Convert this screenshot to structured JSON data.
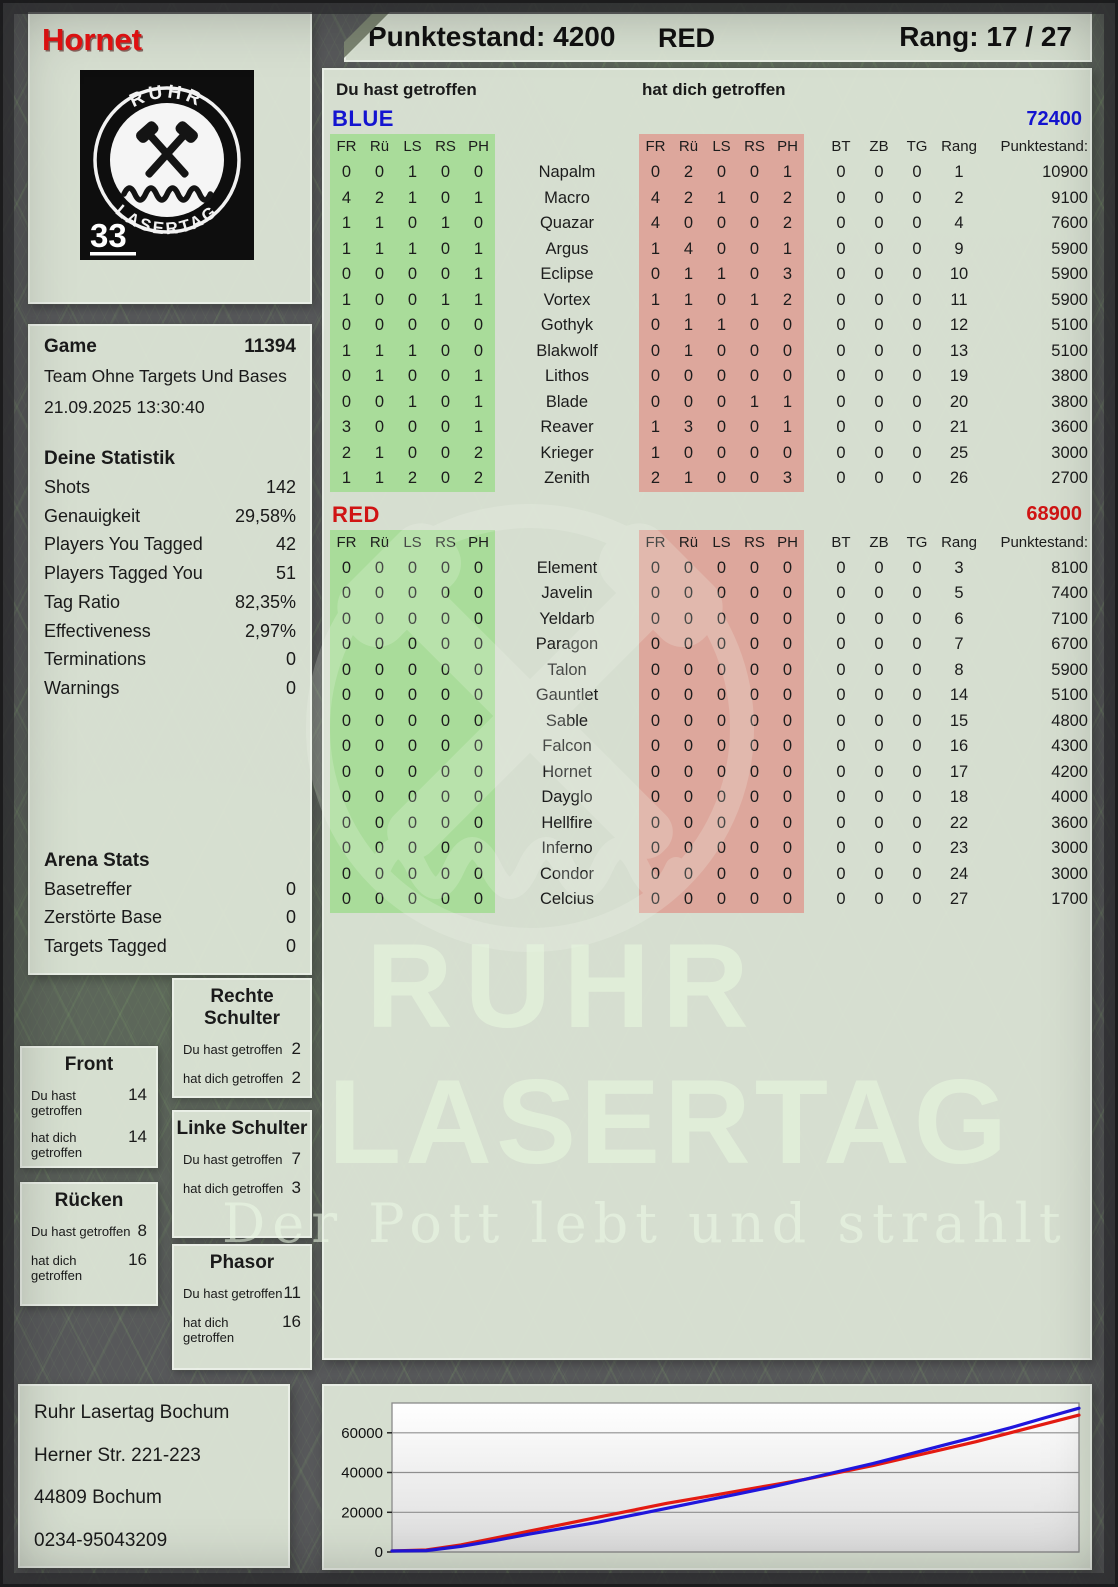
{
  "header": {
    "player": "Hornet",
    "punktestand": "Punktestand: 4200",
    "team": "RED",
    "rang": "Rang: 17 / 27"
  },
  "logo": {
    "top_text": "RUHR",
    "bottom_text": "LASERTAG",
    "badge": "33"
  },
  "game": {
    "title": "Game",
    "id": "11394",
    "mode": "Team Ohne Targets Und Bases",
    "datetime": "21.09.2025 13:30:40"
  },
  "stats": {
    "title": "Deine Statistik",
    "rows": [
      {
        "label": "Shots",
        "value": "142"
      },
      {
        "label": "Genauigkeit",
        "value": "29,58%"
      },
      {
        "label": "Players You Tagged",
        "value": "42"
      },
      {
        "label": "Players Tagged You",
        "value": "51"
      },
      {
        "label": "Tag Ratio",
        "value": "82,35%"
      },
      {
        "label": "Effectiveness",
        "value": "2,97%"
      },
      {
        "label": "Terminations",
        "value": "0"
      },
      {
        "label": "Warnings",
        "value": "0"
      }
    ]
  },
  "arena": {
    "title": "Arena Stats",
    "rows": [
      {
        "label": "Basetreffer",
        "value": "0"
      },
      {
        "label": "Zerstörte Base",
        "value": "0"
      },
      {
        "label": "Targets Tagged",
        "value": "0"
      }
    ]
  },
  "hit_labels": {
    "du": "Du hast getroffen",
    "hat": "hat dich getroffen"
  },
  "hit_boxes": [
    {
      "title": "Front",
      "you": "14",
      "them": "14"
    },
    {
      "title": "Rücken",
      "you": "8",
      "them": "16"
    },
    {
      "title": "Rechte Schulter",
      "you": "2",
      "them": "2"
    },
    {
      "title": "Linke Schulter",
      "you": "7",
      "them": "3"
    },
    {
      "title": "Phasor",
      "you": "11",
      "them": "16"
    }
  ],
  "tables": {
    "you_hit_label": "Du hast getroffen",
    "hit_you_label": "hat dich getroffen",
    "hit_cols": [
      "FR",
      "Rü",
      "LS",
      "RS",
      "PH"
    ],
    "misc_cols": [
      "BT",
      "ZB",
      "TG",
      "Rang",
      "Punktestand:"
    ],
    "teams": [
      {
        "name": "BLUE",
        "color": "#1414d0",
        "total": "72400",
        "rows": [
          {
            "name": "Napalm",
            "you": [
              0,
              0,
              1,
              0,
              0
            ],
            "them": [
              0,
              2,
              0,
              0,
              1
            ],
            "bt": 0,
            "zb": 0,
            "tg": 0,
            "rang": 1,
            "score": "10900"
          },
          {
            "name": "Macro",
            "you": [
              4,
              2,
              1,
              0,
              1
            ],
            "them": [
              4,
              2,
              1,
              0,
              2
            ],
            "bt": 0,
            "zb": 0,
            "tg": 0,
            "rang": 2,
            "score": "9100"
          },
          {
            "name": "Quazar",
            "you": [
              1,
              1,
              0,
              1,
              0
            ],
            "them": [
              4,
              0,
              0,
              0,
              2
            ],
            "bt": 0,
            "zb": 0,
            "tg": 0,
            "rang": 4,
            "score": "7600"
          },
          {
            "name": "Argus",
            "you": [
              1,
              1,
              1,
              0,
              1
            ],
            "them": [
              1,
              4,
              0,
              0,
              1
            ],
            "bt": 0,
            "zb": 0,
            "tg": 0,
            "rang": 9,
            "score": "5900"
          },
          {
            "name": "Eclipse",
            "you": [
              0,
              0,
              0,
              0,
              1
            ],
            "them": [
              0,
              1,
              1,
              0,
              3
            ],
            "bt": 0,
            "zb": 0,
            "tg": 0,
            "rang": 10,
            "score": "5900"
          },
          {
            "name": "Vortex",
            "you": [
              1,
              0,
              0,
              1,
              1
            ],
            "them": [
              1,
              1,
              0,
              1,
              2
            ],
            "bt": 0,
            "zb": 0,
            "tg": 0,
            "rang": 11,
            "score": "5900"
          },
          {
            "name": "Gothyk",
            "you": [
              0,
              0,
              0,
              0,
              0
            ],
            "them": [
              0,
              1,
              1,
              0,
              0
            ],
            "bt": 0,
            "zb": 0,
            "tg": 0,
            "rang": 12,
            "score": "5100"
          },
          {
            "name": "Blakwolf",
            "you": [
              1,
              1,
              1,
              0,
              0
            ],
            "them": [
              0,
              1,
              0,
              0,
              0
            ],
            "bt": 0,
            "zb": 0,
            "tg": 0,
            "rang": 13,
            "score": "5100"
          },
          {
            "name": "Lithos",
            "you": [
              0,
              1,
              0,
              0,
              1
            ],
            "them": [
              0,
              0,
              0,
              0,
              0
            ],
            "bt": 0,
            "zb": 0,
            "tg": 0,
            "rang": 19,
            "score": "3800"
          },
          {
            "name": "Blade",
            "you": [
              0,
              0,
              1,
              0,
              1
            ],
            "them": [
              0,
              0,
              0,
              1,
              1
            ],
            "bt": 0,
            "zb": 0,
            "tg": 0,
            "rang": 20,
            "score": "3800"
          },
          {
            "name": "Reaver",
            "you": [
              3,
              0,
              0,
              0,
              1
            ],
            "them": [
              1,
              3,
              0,
              0,
              1
            ],
            "bt": 0,
            "zb": 0,
            "tg": 0,
            "rang": 21,
            "score": "3600"
          },
          {
            "name": "Krieger",
            "you": [
              2,
              1,
              0,
              0,
              2
            ],
            "them": [
              1,
              0,
              0,
              0,
              0
            ],
            "bt": 0,
            "zb": 0,
            "tg": 0,
            "rang": 25,
            "score": "3000"
          },
          {
            "name": "Zenith",
            "you": [
              1,
              1,
              2,
              0,
              2
            ],
            "them": [
              2,
              1,
              0,
              0,
              3
            ],
            "bt": 0,
            "zb": 0,
            "tg": 0,
            "rang": 26,
            "score": "2700"
          }
        ]
      },
      {
        "name": "RED",
        "color": "#d01414",
        "total": "68900",
        "rows": [
          {
            "name": "Element",
            "you": [
              0,
              0,
              0,
              0,
              0
            ],
            "them": [
              0,
              0,
              0,
              0,
              0
            ],
            "bt": 0,
            "zb": 0,
            "tg": 0,
            "rang": 3,
            "score": "8100"
          },
          {
            "name": "Javelin",
            "you": [
              0,
              0,
              0,
              0,
              0
            ],
            "them": [
              0,
              0,
              0,
              0,
              0
            ],
            "bt": 0,
            "zb": 0,
            "tg": 0,
            "rang": 5,
            "score": "7400"
          },
          {
            "name": "Yeldarb",
            "you": [
              0,
              0,
              0,
              0,
              0
            ],
            "them": [
              0,
              0,
              0,
              0,
              0
            ],
            "bt": 0,
            "zb": 0,
            "tg": 0,
            "rang": 6,
            "score": "7100"
          },
          {
            "name": "Paragon",
            "you": [
              0,
              0,
              0,
              0,
              0
            ],
            "them": [
              0,
              0,
              0,
              0,
              0
            ],
            "bt": 0,
            "zb": 0,
            "tg": 0,
            "rang": 7,
            "score": "6700"
          },
          {
            "name": "Talon",
            "you": [
              0,
              0,
              0,
              0,
              0
            ],
            "them": [
              0,
              0,
              0,
              0,
              0
            ],
            "bt": 0,
            "zb": 0,
            "tg": 0,
            "rang": 8,
            "score": "5900"
          },
          {
            "name": "Gauntlet",
            "you": [
              0,
              0,
              0,
              0,
              0
            ],
            "them": [
              0,
              0,
              0,
              0,
              0
            ],
            "bt": 0,
            "zb": 0,
            "tg": 0,
            "rang": 14,
            "score": "5100"
          },
          {
            "name": "Sable",
            "you": [
              0,
              0,
              0,
              0,
              0
            ],
            "them": [
              0,
              0,
              0,
              0,
              0
            ],
            "bt": 0,
            "zb": 0,
            "tg": 0,
            "rang": 15,
            "score": "4800"
          },
          {
            "name": "Falcon",
            "you": [
              0,
              0,
              0,
              0,
              0
            ],
            "them": [
              0,
              0,
              0,
              0,
              0
            ],
            "bt": 0,
            "zb": 0,
            "tg": 0,
            "rang": 16,
            "score": "4300"
          },
          {
            "name": "Hornet",
            "you": [
              0,
              0,
              0,
              0,
              0
            ],
            "them": [
              0,
              0,
              0,
              0,
              0
            ],
            "bt": 0,
            "zb": 0,
            "tg": 0,
            "rang": 17,
            "score": "4200"
          },
          {
            "name": "Dayglo",
            "you": [
              0,
              0,
              0,
              0,
              0
            ],
            "them": [
              0,
              0,
              0,
              0,
              0
            ],
            "bt": 0,
            "zb": 0,
            "tg": 0,
            "rang": 18,
            "score": "4000"
          },
          {
            "name": "Hellfire",
            "you": [
              0,
              0,
              0,
              0,
              0
            ],
            "them": [
              0,
              0,
              0,
              0,
              0
            ],
            "bt": 0,
            "zb": 0,
            "tg": 0,
            "rang": 22,
            "score": "3600"
          },
          {
            "name": "Inferno",
            "you": [
              0,
              0,
              0,
              0,
              0
            ],
            "them": [
              0,
              0,
              0,
              0,
              0
            ],
            "bt": 0,
            "zb": 0,
            "tg": 0,
            "rang": 23,
            "score": "3000"
          },
          {
            "name": "Condor",
            "you": [
              0,
              0,
              0,
              0,
              0
            ],
            "them": [
              0,
              0,
              0,
              0,
              0
            ],
            "bt": 0,
            "zb": 0,
            "tg": 0,
            "rang": 24,
            "score": "3000"
          },
          {
            "name": "Celcius",
            "you": [
              0,
              0,
              0,
              0,
              0
            ],
            "them": [
              0,
              0,
              0,
              0,
              0
            ],
            "bt": 0,
            "zb": 0,
            "tg": 0,
            "rang": 27,
            "score": "1700"
          }
        ]
      }
    ]
  },
  "watermark": {
    "line1": "RUHR",
    "line2": "LASERTAG",
    "slogan": "Der Pott lebt und strahlt"
  },
  "footer": {
    "address_lines": [
      "Ruhr Lasertag Bochum",
      "Herner Str. 221-223",
      "44809 Bochum",
      "0234-95043209"
    ]
  },
  "chart_data": {
    "type": "line",
    "title": "",
    "xlabel": "",
    "ylabel": "",
    "x": [
      0,
      1,
      2,
      3,
      4,
      5,
      6,
      7,
      8,
      9,
      10,
      11,
      12,
      13,
      14,
      15,
      16,
      17,
      18,
      19,
      20
    ],
    "yticks": [
      0,
      20000,
      40000,
      60000
    ],
    "ylim": [
      0,
      75000
    ],
    "grid": true,
    "legend_position": "none",
    "series": [
      {
        "name": "RED",
        "color": "#e41b12",
        "values": [
          500,
          1000,
          3500,
          7000,
          10500,
          14000,
          17500,
          21000,
          24500,
          27500,
          30500,
          33500,
          36500,
          40000,
          43500,
          47500,
          51500,
          55500,
          60000,
          64500,
          68900
        ]
      },
      {
        "name": "BLUE",
        "color": "#2016dd",
        "values": [
          500,
          700,
          2800,
          5800,
          9000,
          12000,
          15000,
          18500,
          22000,
          25500,
          29000,
          32500,
          36500,
          40500,
          44500,
          49000,
          53500,
          58000,
          62500,
          67500,
          72400
        ]
      }
    ]
  }
}
